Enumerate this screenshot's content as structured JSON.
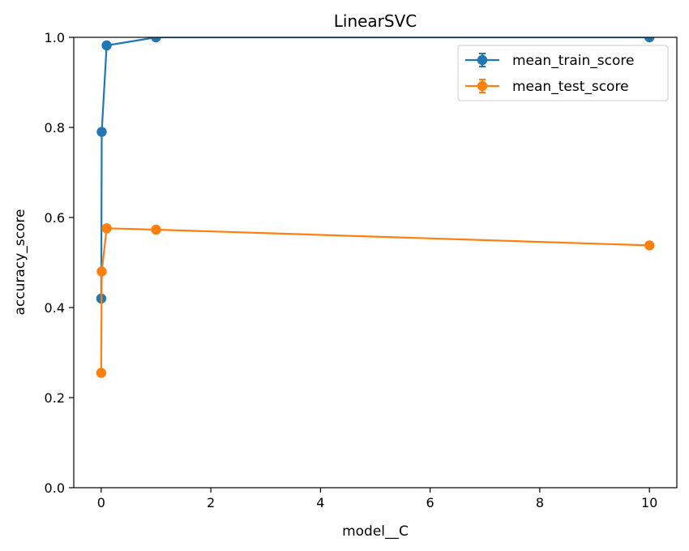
{
  "chart_data": {
    "type": "line",
    "title": "LinearSVC",
    "xlabel": "model__C",
    "ylabel": "accuracy_score",
    "xlim": [
      -0.5,
      10.5
    ],
    "ylim": [
      0.0,
      1.0
    ],
    "xticks": [
      0,
      2,
      4,
      6,
      8,
      10
    ],
    "yticks": [
      0.0,
      0.2,
      0.4,
      0.6,
      0.8,
      1.0
    ],
    "xtick_labels": [
      "0",
      "2",
      "4",
      "6",
      "8",
      "10"
    ],
    "ytick_labels": [
      "0.0",
      "0.2",
      "0.4",
      "0.6",
      "0.8",
      "1.0"
    ],
    "grid": false,
    "legend_position": "top-right",
    "series": [
      {
        "name": "mean_train_score",
        "color": "#1f77b4",
        "marker": "circle",
        "error_bars": true,
        "points": [
          {
            "x": 0.001,
            "y": 0.42
          },
          {
            "x": 0.01,
            "y": 0.79
          },
          {
            "x": 0.1,
            "y": 0.982
          },
          {
            "x": 1,
            "y": 1.0
          },
          {
            "x": 10,
            "y": 1.0
          }
        ]
      },
      {
        "name": "mean_test_score",
        "color": "#ff7f0e",
        "marker": "circle",
        "error_bars": true,
        "points": [
          {
            "x": 0.0001,
            "y": 0.255
          },
          {
            "x": 0.01,
            "y": 0.48
          },
          {
            "x": 0.1,
            "y": 0.576
          },
          {
            "x": 1,
            "y": 0.573
          },
          {
            "x": 10,
            "y": 0.538
          }
        ]
      }
    ]
  }
}
